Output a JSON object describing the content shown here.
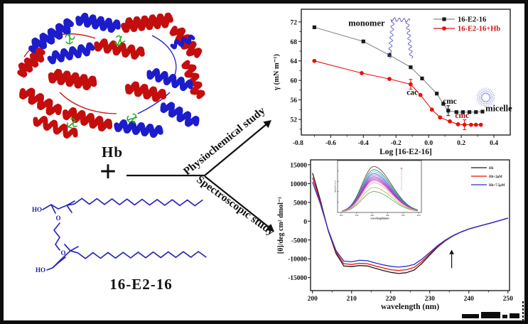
{
  "figure": {
    "hb_label": "Hb",
    "plus": "+",
    "surfactant_label": "16-E2-16",
    "arrow_top_label": "Physiochemical study",
    "arrow_bottom_label": "Spectroscopic study",
    "atoms": {
      "ho1": "HO",
      "o1": "O",
      "o2": "O",
      "ho2": "HO"
    }
  },
  "colors": {
    "black_series": "#1a1a1a",
    "gray_line": "#888888",
    "red_series": "#e8100c",
    "blue_series": "#2a2ad4",
    "surfactant_blue": "#2828bb",
    "monomer_blue": "#5555cc",
    "micelle_blue": "#8890d8",
    "protein_red": "#c40d0d",
    "protein_blue": "#1c1ccc",
    "heme_green": "#1db01d"
  },
  "chart_data": [
    {
      "type": "line",
      "name": "surface-tension-plot",
      "xlabel": "Log [16-E2-16]",
      "ylabel": "γ (mN m⁻¹)",
      "xlim": [
        -0.78,
        0.5
      ],
      "ylim": [
        48.8,
        74.6
      ],
      "xticks": [
        -0.8,
        -0.6,
        -0.4,
        -0.2,
        0.0,
        0.2,
        0.4
      ],
      "xtick_labels": [
        "-0.8",
        "-0.6",
        "-0.4",
        "-0.2",
        "0.0",
        "0.2",
        "0.4"
      ],
      "yticks": [
        52,
        56,
        60,
        64,
        68,
        72
      ],
      "ytick_labels": [
        "52",
        "56",
        "60",
        "64",
        "68",
        "72"
      ],
      "grid": false,
      "legend_position": "top-right",
      "series": [
        {
          "name": "16-E2-16",
          "marker": "square",
          "marker_color": "#1a1a1a",
          "line_color": "#888888",
          "label_color": "#111111",
          "x": [
            -0.7,
            -0.4,
            -0.24,
            -0.11,
            -0.04,
            0.05,
            0.09,
            0.12,
            0.17,
            0.21,
            0.25,
            0.29,
            0.33
          ],
          "y": [
            70.9,
            68.0,
            65.2,
            62.7,
            60.4,
            57.3,
            55.2,
            53.8,
            53.5,
            53.5,
            53.5,
            53.5,
            53.6
          ],
          "errorbar_indices": [
            7
          ]
        },
        {
          "name": "16-E2-16+Hb",
          "marker": "circle",
          "marker_color": "#e8100c",
          "line_color": "#e8100c",
          "label_color": "#cc1111",
          "x": [
            -0.7,
            -0.41,
            -0.24,
            -0.11,
            -0.05,
            0.02,
            0.07,
            0.13,
            0.18,
            0.22,
            0.26,
            0.29,
            0.32
          ],
          "y": [
            64.0,
            61.5,
            60.3,
            59.2,
            57.0,
            54.0,
            52.4,
            51.6,
            51.0,
            50.9,
            50.9,
            50.9,
            50.9
          ],
          "errorbar_indices": [
            3,
            9
          ]
        }
      ],
      "annotations": [
        {
          "text": "monomer",
          "x": -0.38,
          "y": 71.2,
          "color": "#111111",
          "size": 12.5
        },
        {
          "text": "cac",
          "x": -0.1,
          "y": 57.0,
          "color": "#111111",
          "size": 11.5
        },
        {
          "text": "cmc",
          "x": 0.13,
          "y": 55.2,
          "color": "#111111",
          "size": 11.5
        },
        {
          "text": "cmc",
          "x": 0.205,
          "y": 52.3,
          "color": "#991111",
          "size": 11.5
        },
        {
          "text": "micelle",
          "x": 0.43,
          "y": 53.7,
          "color": "#111111",
          "size": 12.5
        }
      ],
      "icons": [
        "monomer-molecule",
        "micelle-circle"
      ]
    },
    {
      "type": "line",
      "name": "cd-spectra-plot",
      "xlabel": "wavelength (nm)",
      "ylabel": "[θ]/deg cm² dmol⁻¹",
      "xlim": [
        199.5,
        250.4
      ],
      "ylim": [
        -18460,
        16300
      ],
      "xticks": [
        200,
        210,
        220,
        230,
        240,
        250
      ],
      "xtick_labels": [
        "200",
        "210",
        "220",
        "230",
        "240",
        "250"
      ],
      "yticks": [
        15000,
        10000,
        5000,
        0,
        -5000,
        -10000,
        -15000
      ],
      "ytick_labels": [
        "15000",
        "10000",
        "5000",
        "0",
        "-5000",
        "-10000",
        "-15000"
      ],
      "grid": false,
      "legend_position": "top-right",
      "x": [
        200,
        202,
        204,
        206,
        208,
        210,
        212,
        214,
        216,
        218,
        220,
        222,
        224,
        226,
        228,
        230,
        232,
        234,
        236,
        238,
        240,
        242,
        244,
        246,
        248,
        250
      ],
      "series": [
        {
          "name": "Hb",
          "color": "#1a1a1a",
          "values": [
            12800,
            5600,
            -2500,
            -8600,
            -11900,
            -12100,
            -11800,
            -11900,
            -12500,
            -13100,
            -13600,
            -13900,
            -13700,
            -13000,
            -11200,
            -9000,
            -6900,
            -5200,
            -3900,
            -2900,
            -2100,
            -1500,
            -950,
            -400,
            200,
            800
          ]
        },
        {
          "name": "Hb+2μM",
          "color": "#e8100c",
          "values": [
            11600,
            5100,
            -2400,
            -8200,
            -11300,
            -11500,
            -11200,
            -11300,
            -11900,
            -12400,
            -12900,
            -13100,
            -12900,
            -12300,
            -10700,
            -8700,
            -6700,
            -5100,
            -3850,
            -2870,
            -2080,
            -1480,
            -940,
            -390,
            210,
            810
          ]
        },
        {
          "name": "Hb+7.5μM",
          "color": "#2a2ad4",
          "values": [
            10400,
            4600,
            -2300,
            -7800,
            -10600,
            -10800,
            -10400,
            -10500,
            -11100,
            -11600,
            -12000,
            -12200,
            -12000,
            -11500,
            -10100,
            -8300,
            -6500,
            -5000,
            -3800,
            -2850,
            -2060,
            -1470,
            -930,
            -380,
            215,
            820
          ]
        }
      ],
      "annotations": [
        {
          "type": "arrow-up",
          "x": 235.6,
          "y_from": -12500,
          "y_to": -7600
        }
      ]
    },
    {
      "type": "line",
      "name": "fluorescence-inset",
      "xlabel": "wavelength(nm)",
      "ylabel": "Intensity (a.u.)",
      "xticks": [
        300,
        320,
        340,
        360,
        380,
        400
      ],
      "xtick_labels": [
        "300",
        "320",
        "340",
        "360",
        "380",
        "400"
      ],
      "peak_wavelength": 342,
      "relative_peak_heights": [
        1.0,
        0.93,
        0.885,
        0.845,
        0.81,
        0.775,
        0.745,
        0.715,
        0.685,
        0.64,
        0.54,
        0.45
      ],
      "curve_colors": [
        "#4a3b10",
        "#1f7a6e",
        "#53b8d8",
        "#3a55cc",
        "#8878d8",
        "#8a2be2",
        "#b03ab0",
        "#c71585",
        "#d87fd8",
        "#e8a0b8",
        "#c8a84b",
        "#55aa55"
      ],
      "annotations": [
        {
          "type": "arrow-up-dashed",
          "x": 378
        }
      ]
    }
  ]
}
